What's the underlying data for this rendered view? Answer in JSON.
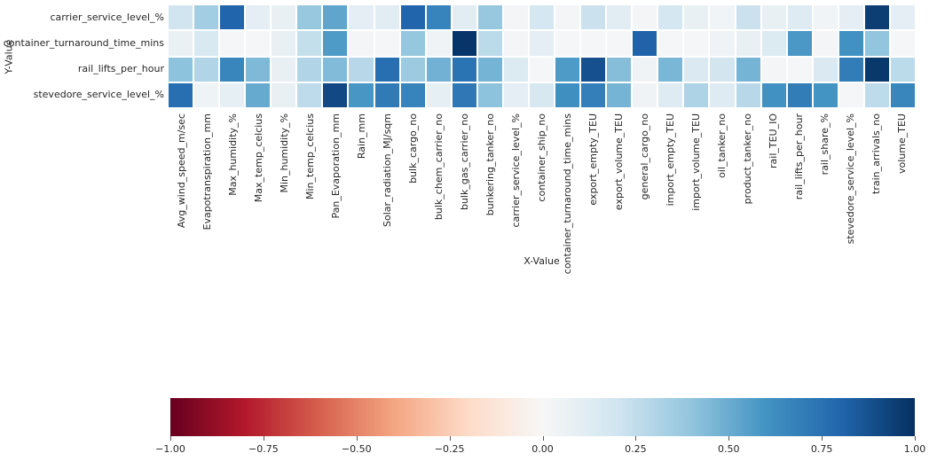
{
  "chart_data": {
    "type": "heatmap",
    "title": "",
    "xlabel": "X-Value",
    "ylabel": "Y-Value",
    "x_categories": [
      "Avg_wind_speed_m/sec",
      "Evapotranspiration_mm",
      "Max_humidity_%",
      "Max_temp_celcius",
      "Min_humidity_%",
      "Min_temp_celcius",
      "Pan_Evaporation_mm",
      "Rain_mm",
      "Solar_radiation_MJ/sqm",
      "bulk_cargo_no",
      "bulk_chem_carrier_no",
      "bulk_gas_carrier_no",
      "bunkering_tanker_no",
      "carrier_service_level_%",
      "container_ship_no",
      "container_turnaround_time_mins",
      "export_empty_TEU",
      "export_volume_TEU",
      "general_cargo_no",
      "import_empty_TEU",
      "import_volume_TEU",
      "oil_tanker_no",
      "product_tanker_no",
      "rail_TEU_IO",
      "rail_lifts_per_hour",
      "rail_share_%",
      "stevedore_service_level_%",
      "train_arrivals_no",
      "volume_TEU"
    ],
    "y_categories": [
      "carrier_service_level_%",
      "container_turnaround_time_mins",
      "rail_lifts_per_hour",
      "stevedore_service_level_%"
    ],
    "values": [
      [
        0.2,
        0.35,
        0.8,
        0.1,
        0.08,
        0.38,
        0.53,
        0.1,
        0.11,
        0.8,
        0.67,
        0.11,
        0.38,
        0.02,
        0.18,
        0.02,
        0.22,
        0.11,
        0.02,
        0.18,
        0.08,
        0.03,
        0.22,
        0.08,
        0.13,
        0.03,
        0.1,
        0.95,
        0.1
      ],
      [
        0.07,
        0.16,
        0.01,
        0.01,
        0.08,
        0.24,
        0.57,
        0.02,
        0.01,
        0.39,
        0.04,
        0.98,
        0.27,
        0.02,
        0.1,
        0.01,
        0.01,
        0.01,
        0.81,
        0.01,
        0.01,
        0.04,
        0.08,
        0.14,
        0.58,
        0.02,
        0.61,
        0.4,
        0.01
      ],
      [
        0.41,
        0.3,
        0.66,
        0.45,
        0.08,
        0.3,
        0.44,
        0.28,
        0.76,
        0.37,
        0.48,
        0.74,
        0.47,
        0.14,
        0.01,
        0.57,
        0.88,
        0.43,
        0.04,
        0.46,
        0.15,
        0.19,
        0.47,
        0.02,
        0.01,
        0.15,
        0.7,
        0.97,
        0.27
      ],
      [
        0.76,
        0.05,
        0.09,
        0.51,
        0.08,
        0.26,
        0.91,
        0.59,
        0.71,
        0.67,
        0.09,
        0.72,
        0.41,
        0.1,
        0.17,
        0.62,
        0.69,
        0.47,
        0.04,
        0.13,
        0.31,
        0.13,
        0.28,
        0.61,
        0.7,
        0.6,
        0.01,
        0.26,
        0.66
      ]
    ],
    "colormap": {
      "name": "RdBu",
      "anchors": [
        {
          "t": 0.0,
          "color": "#67001f"
        },
        {
          "t": 0.1,
          "color": "#b2182b"
        },
        {
          "t": 0.2,
          "color": "#d6604d"
        },
        {
          "t": 0.3,
          "color": "#f4a582"
        },
        {
          "t": 0.4,
          "color": "#fddbc7"
        },
        {
          "t": 0.5,
          "color": "#f7f7f7"
        },
        {
          "t": 0.6,
          "color": "#d1e5f0"
        },
        {
          "t": 0.7,
          "color": "#92c5de"
        },
        {
          "t": 0.8,
          "color": "#4393c3"
        },
        {
          "t": 0.9,
          "color": "#2166ac"
        },
        {
          "t": 1.0,
          "color": "#053061"
        }
      ]
    },
    "colorbar": {
      "min": -1,
      "max": 1,
      "tick_values": [
        -1,
        -0.75,
        -0.5,
        -0.25,
        0,
        0.25,
        0.5,
        0.75,
        1
      ],
      "tick_labels": [
        "−1.00",
        "−0.75",
        "−0.50",
        "−0.25",
        "0.00",
        "0.25",
        "0.50",
        "0.75",
        "1.00"
      ],
      "orientation": "horizontal",
      "position": "bottom"
    },
    "style": {
      "background": "#ffffff",
      "text_color": "#262626",
      "cell_gap_color": "#ffffff",
      "grid": false,
      "legend": false
    }
  }
}
